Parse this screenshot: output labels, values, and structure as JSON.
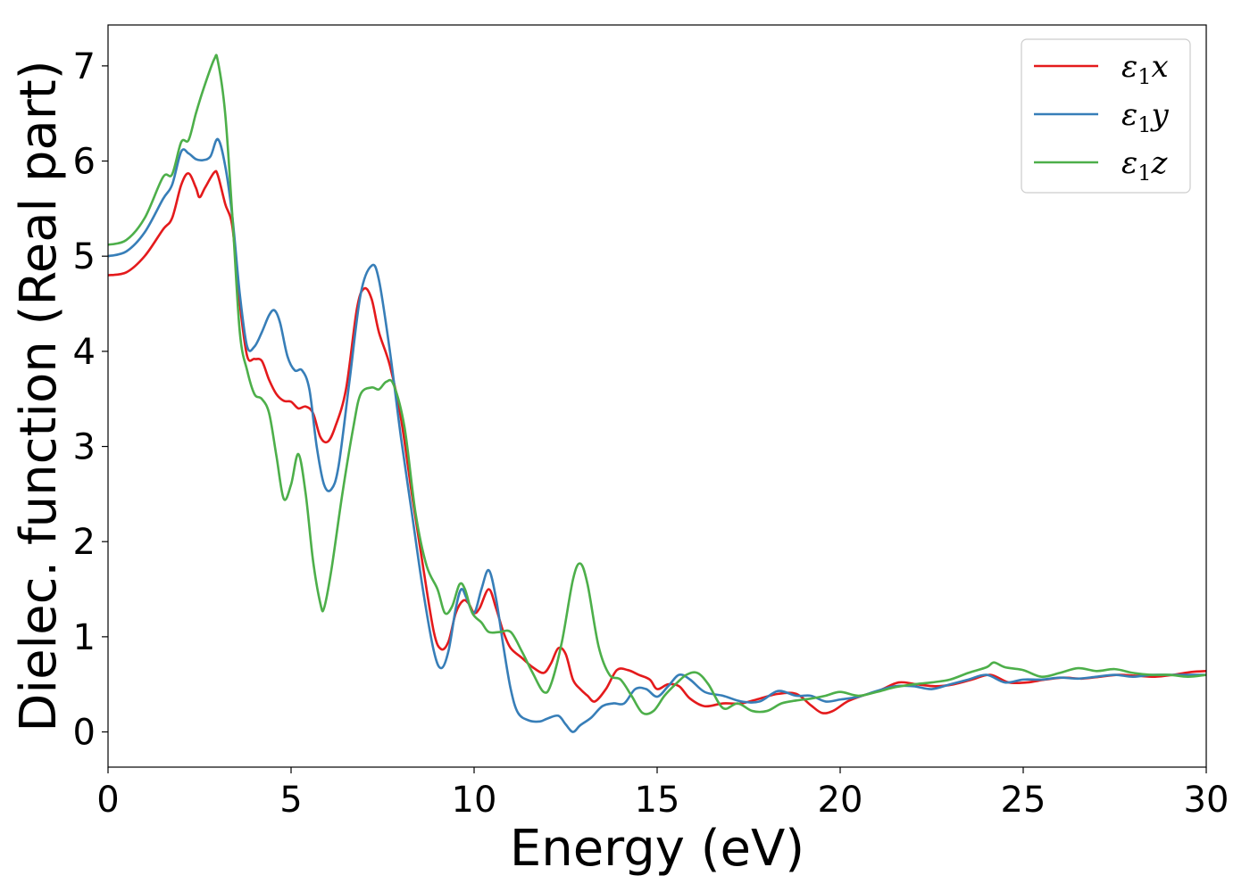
{
  "chart_data": {
    "type": "line",
    "title": "",
    "xlabel": "Energy (eV)",
    "ylabel": "Dielec. function (Real part)",
    "xlim": [
      0,
      30
    ],
    "ylim": [
      -0.37,
      7.43
    ],
    "xticks": [
      0,
      5,
      10,
      15,
      20,
      25,
      30
    ],
    "xtick_labels": [
      "0",
      "5",
      "10",
      "15",
      "20",
      "25",
      "30"
    ],
    "yticks": [
      0,
      1,
      2,
      3,
      4,
      5,
      6,
      7
    ],
    "ytick_labels": [
      "0",
      "1",
      "2",
      "3",
      "4",
      "5",
      "6",
      "7"
    ],
    "grid": false,
    "legend_position": "top-right",
    "series": [
      {
        "name": "ε1x",
        "legend_base": "ε",
        "legend_sub": "1",
        "legend_suffix": "x",
        "color": "#e41a1c",
        "points": [
          [
            0,
            4.8
          ],
          [
            0.5,
            4.83
          ],
          [
            1.0,
            5.0
          ],
          [
            1.5,
            5.28
          ],
          [
            1.75,
            5.4
          ],
          [
            2.0,
            5.75
          ],
          [
            2.2,
            5.87
          ],
          [
            2.4,
            5.72
          ],
          [
            2.5,
            5.62
          ],
          [
            2.65,
            5.72
          ],
          [
            2.9,
            5.88
          ],
          [
            3.0,
            5.85
          ],
          [
            3.2,
            5.55
          ],
          [
            3.4,
            5.3
          ],
          [
            3.6,
            4.5
          ],
          [
            3.8,
            3.95
          ],
          [
            4.0,
            3.92
          ],
          [
            4.2,
            3.9
          ],
          [
            4.4,
            3.7
          ],
          [
            4.6,
            3.55
          ],
          [
            4.8,
            3.48
          ],
          [
            5.0,
            3.47
          ],
          [
            5.2,
            3.4
          ],
          [
            5.4,
            3.42
          ],
          [
            5.6,
            3.35
          ],
          [
            5.8,
            3.1
          ],
          [
            6.0,
            3.05
          ],
          [
            6.2,
            3.2
          ],
          [
            6.5,
            3.6
          ],
          [
            6.8,
            4.45
          ],
          [
            7.0,
            4.66
          ],
          [
            7.2,
            4.55
          ],
          [
            7.4,
            4.2
          ],
          [
            7.7,
            3.85
          ],
          [
            8.0,
            3.3
          ],
          [
            8.3,
            2.5
          ],
          [
            8.6,
            1.75
          ],
          [
            8.9,
            1.05
          ],
          [
            9.1,
            0.87
          ],
          [
            9.3,
            0.95
          ],
          [
            9.5,
            1.25
          ],
          [
            9.7,
            1.38
          ],
          [
            9.85,
            1.35
          ],
          [
            10.0,
            1.25
          ],
          [
            10.15,
            1.3
          ],
          [
            10.4,
            1.5
          ],
          [
            10.6,
            1.3
          ],
          [
            10.8,
            1.05
          ],
          [
            11.0,
            0.88
          ],
          [
            11.3,
            0.78
          ],
          [
            11.6,
            0.68
          ],
          [
            11.9,
            0.62
          ],
          [
            12.1,
            0.72
          ],
          [
            12.3,
            0.88
          ],
          [
            12.5,
            0.82
          ],
          [
            12.7,
            0.55
          ],
          [
            12.9,
            0.45
          ],
          [
            13.1,
            0.38
          ],
          [
            13.3,
            0.32
          ],
          [
            13.6,
            0.45
          ],
          [
            13.9,
            0.65
          ],
          [
            14.2,
            0.65
          ],
          [
            14.5,
            0.6
          ],
          [
            14.8,
            0.55
          ],
          [
            15.0,
            0.45
          ],
          [
            15.3,
            0.5
          ],
          [
            15.6,
            0.48
          ],
          [
            15.9,
            0.35
          ],
          [
            16.3,
            0.27
          ],
          [
            16.8,
            0.3
          ],
          [
            17.3,
            0.3
          ],
          [
            17.8,
            0.35
          ],
          [
            18.3,
            0.4
          ],
          [
            18.8,
            0.4
          ],
          [
            19.2,
            0.28
          ],
          [
            19.5,
            0.2
          ],
          [
            19.8,
            0.22
          ],
          [
            20.2,
            0.32
          ],
          [
            20.6,
            0.38
          ],
          [
            21.1,
            0.44
          ],
          [
            21.6,
            0.52
          ],
          [
            22.1,
            0.5
          ],
          [
            22.6,
            0.48
          ],
          [
            23.1,
            0.5
          ],
          [
            23.6,
            0.55
          ],
          [
            24.1,
            0.6
          ],
          [
            24.6,
            0.52
          ],
          [
            25.1,
            0.52
          ],
          [
            25.6,
            0.55
          ],
          [
            26.1,
            0.57
          ],
          [
            26.6,
            0.56
          ],
          [
            27.1,
            0.58
          ],
          [
            27.6,
            0.6
          ],
          [
            28.1,
            0.59
          ],
          [
            28.6,
            0.58
          ],
          [
            29.1,
            0.6
          ],
          [
            29.6,
            0.63
          ],
          [
            30,
            0.64
          ]
        ]
      },
      {
        "name": "ε1y",
        "legend_base": "ε",
        "legend_sub": "1",
        "legend_suffix": "y",
        "color": "#377eb8",
        "points": [
          [
            0,
            5.0
          ],
          [
            0.5,
            5.05
          ],
          [
            1.0,
            5.25
          ],
          [
            1.5,
            5.6
          ],
          [
            1.75,
            5.75
          ],
          [
            2.0,
            6.1
          ],
          [
            2.2,
            6.08
          ],
          [
            2.4,
            6.02
          ],
          [
            2.6,
            6.01
          ],
          [
            2.8,
            6.05
          ],
          [
            3.0,
            6.23
          ],
          [
            3.2,
            5.95
          ],
          [
            3.4,
            5.4
          ],
          [
            3.6,
            4.6
          ],
          [
            3.8,
            4.05
          ],
          [
            4.0,
            4.05
          ],
          [
            4.2,
            4.2
          ],
          [
            4.4,
            4.38
          ],
          [
            4.55,
            4.43
          ],
          [
            4.7,
            4.3
          ],
          [
            4.9,
            3.95
          ],
          [
            5.1,
            3.8
          ],
          [
            5.3,
            3.8
          ],
          [
            5.5,
            3.6
          ],
          [
            5.7,
            3.0
          ],
          [
            5.9,
            2.6
          ],
          [
            6.1,
            2.55
          ],
          [
            6.3,
            2.8
          ],
          [
            6.6,
            3.7
          ],
          [
            6.9,
            4.6
          ],
          [
            7.2,
            4.9
          ],
          [
            7.4,
            4.75
          ],
          [
            7.7,
            4.0
          ],
          [
            8.0,
            3.1
          ],
          [
            8.3,
            2.3
          ],
          [
            8.6,
            1.5
          ],
          [
            8.9,
            0.85
          ],
          [
            9.1,
            0.67
          ],
          [
            9.3,
            0.85
          ],
          [
            9.5,
            1.3
          ],
          [
            9.65,
            1.5
          ],
          [
            9.8,
            1.4
          ],
          [
            10.0,
            1.25
          ],
          [
            10.2,
            1.5
          ],
          [
            10.4,
            1.7
          ],
          [
            10.6,
            1.4
          ],
          [
            10.8,
            0.9
          ],
          [
            11.0,
            0.45
          ],
          [
            11.2,
            0.2
          ],
          [
            11.5,
            0.12
          ],
          [
            11.8,
            0.11
          ],
          [
            12.0,
            0.14
          ],
          [
            12.3,
            0.17
          ],
          [
            12.5,
            0.08
          ],
          [
            12.7,
            0.0
          ],
          [
            12.9,
            0.07
          ],
          [
            13.2,
            0.15
          ],
          [
            13.5,
            0.27
          ],
          [
            13.8,
            0.3
          ],
          [
            14.1,
            0.3
          ],
          [
            14.4,
            0.45
          ],
          [
            14.7,
            0.45
          ],
          [
            15.0,
            0.37
          ],
          [
            15.3,
            0.48
          ],
          [
            15.6,
            0.6
          ],
          [
            15.9,
            0.55
          ],
          [
            16.3,
            0.42
          ],
          [
            16.8,
            0.38
          ],
          [
            17.3,
            0.32
          ],
          [
            17.8,
            0.32
          ],
          [
            18.3,
            0.43
          ],
          [
            18.8,
            0.38
          ],
          [
            19.2,
            0.38
          ],
          [
            19.6,
            0.32
          ],
          [
            20.0,
            0.34
          ],
          [
            20.5,
            0.37
          ],
          [
            21.0,
            0.43
          ],
          [
            21.5,
            0.48
          ],
          [
            22.0,
            0.48
          ],
          [
            22.5,
            0.45
          ],
          [
            23.0,
            0.5
          ],
          [
            23.5,
            0.55
          ],
          [
            24.0,
            0.6
          ],
          [
            24.5,
            0.52
          ],
          [
            25.0,
            0.55
          ],
          [
            25.5,
            0.55
          ],
          [
            26.0,
            0.57
          ],
          [
            26.5,
            0.56
          ],
          [
            27.0,
            0.58
          ],
          [
            27.5,
            0.6
          ],
          [
            28.0,
            0.58
          ],
          [
            28.5,
            0.6
          ],
          [
            29.0,
            0.6
          ],
          [
            29.5,
            0.6
          ],
          [
            30,
            0.6
          ]
        ]
      },
      {
        "name": "ε1z",
        "legend_base": "ε",
        "legend_sub": "1",
        "legend_suffix": "z",
        "color": "#4daf4a",
        "points": [
          [
            0,
            5.12
          ],
          [
            0.5,
            5.17
          ],
          [
            1.0,
            5.4
          ],
          [
            1.5,
            5.83
          ],
          [
            1.75,
            5.86
          ],
          [
            2.0,
            6.2
          ],
          [
            2.2,
            6.22
          ],
          [
            2.4,
            6.5
          ],
          [
            2.6,
            6.75
          ],
          [
            2.9,
            7.07
          ],
          [
            3.0,
            7.05
          ],
          [
            3.2,
            6.5
          ],
          [
            3.4,
            5.4
          ],
          [
            3.6,
            4.2
          ],
          [
            3.8,
            3.8
          ],
          [
            4.0,
            3.55
          ],
          [
            4.2,
            3.5
          ],
          [
            4.4,
            3.35
          ],
          [
            4.6,
            2.9
          ],
          [
            4.8,
            2.45
          ],
          [
            5.0,
            2.6
          ],
          [
            5.2,
            2.92
          ],
          [
            5.4,
            2.5
          ],
          [
            5.6,
            1.8
          ],
          [
            5.8,
            1.35
          ],
          [
            5.9,
            1.3
          ],
          [
            6.1,
            1.7
          ],
          [
            6.4,
            2.5
          ],
          [
            6.7,
            3.2
          ],
          [
            6.9,
            3.55
          ],
          [
            7.2,
            3.62
          ],
          [
            7.4,
            3.6
          ],
          [
            7.6,
            3.68
          ],
          [
            7.8,
            3.65
          ],
          [
            8.1,
            3.2
          ],
          [
            8.4,
            2.3
          ],
          [
            8.7,
            1.75
          ],
          [
            9.0,
            1.5
          ],
          [
            9.2,
            1.25
          ],
          [
            9.4,
            1.32
          ],
          [
            9.6,
            1.55
          ],
          [
            9.75,
            1.5
          ],
          [
            9.95,
            1.25
          ],
          [
            10.2,
            1.15
          ],
          [
            10.4,
            1.05
          ],
          [
            10.7,
            1.05
          ],
          [
            11.0,
            1.05
          ],
          [
            11.3,
            0.85
          ],
          [
            11.6,
            0.62
          ],
          [
            11.9,
            0.42
          ],
          [
            12.1,
            0.5
          ],
          [
            12.4,
            0.95
          ],
          [
            12.7,
            1.6
          ],
          [
            12.9,
            1.77
          ],
          [
            13.1,
            1.55
          ],
          [
            13.4,
            0.9
          ],
          [
            13.7,
            0.6
          ],
          [
            14.0,
            0.55
          ],
          [
            14.3,
            0.38
          ],
          [
            14.6,
            0.2
          ],
          [
            14.9,
            0.22
          ],
          [
            15.2,
            0.38
          ],
          [
            15.5,
            0.5
          ],
          [
            15.8,
            0.6
          ],
          [
            16.1,
            0.62
          ],
          [
            16.4,
            0.5
          ],
          [
            16.8,
            0.25
          ],
          [
            17.2,
            0.3
          ],
          [
            17.6,
            0.22
          ],
          [
            18.0,
            0.22
          ],
          [
            18.4,
            0.3
          ],
          [
            18.8,
            0.33
          ],
          [
            19.2,
            0.35
          ],
          [
            19.6,
            0.38
          ],
          [
            20.0,
            0.42
          ],
          [
            20.5,
            0.38
          ],
          [
            21.0,
            0.42
          ],
          [
            21.5,
            0.47
          ],
          [
            22.0,
            0.5
          ],
          [
            22.5,
            0.52
          ],
          [
            23.0,
            0.55
          ],
          [
            23.5,
            0.62
          ],
          [
            24.0,
            0.68
          ],
          [
            24.2,
            0.73
          ],
          [
            24.5,
            0.68
          ],
          [
            25.0,
            0.65
          ],
          [
            25.5,
            0.58
          ],
          [
            26.0,
            0.62
          ],
          [
            26.5,
            0.67
          ],
          [
            27.0,
            0.64
          ],
          [
            27.5,
            0.66
          ],
          [
            28.0,
            0.62
          ],
          [
            28.5,
            0.6
          ],
          [
            29.0,
            0.6
          ],
          [
            29.5,
            0.58
          ],
          [
            30,
            0.6
          ]
        ]
      }
    ]
  }
}
